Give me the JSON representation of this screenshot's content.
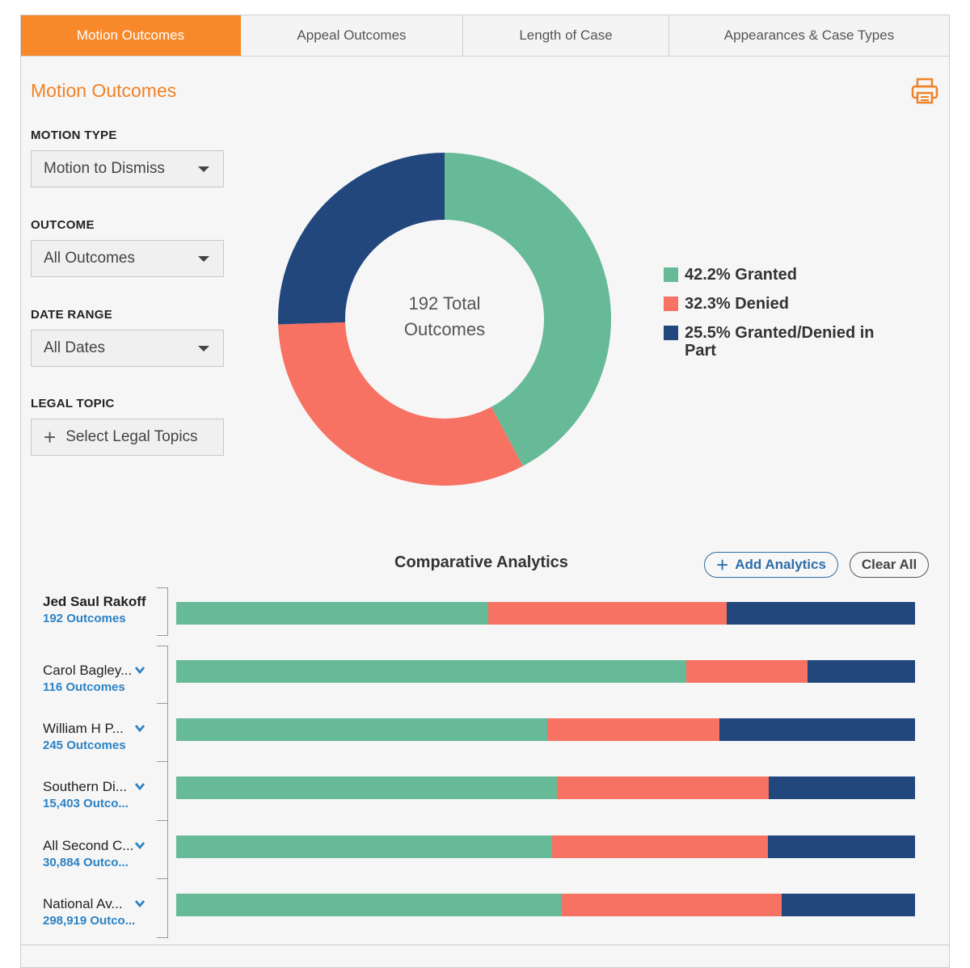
{
  "tabs": [
    {
      "label": "Motion Outcomes",
      "active": true
    },
    {
      "label": "Appeal Outcomes",
      "active": false
    },
    {
      "label": "Length of Case",
      "active": false
    },
    {
      "label": "Appearances & Case Types",
      "active": false
    }
  ],
  "section_title": "Motion Outcomes",
  "filters": {
    "motion_type": {
      "label": "MOTION TYPE",
      "value": "Motion to Dismiss"
    },
    "outcome": {
      "label": "OUTCOME",
      "value": "All Outcomes"
    },
    "date_range": {
      "label": "DATE RANGE",
      "value": "All Dates"
    },
    "legal_topic": {
      "label": "LEGAL TOPIC",
      "placeholder": "Select Legal Topics"
    }
  },
  "colors": {
    "granted": "#66ba97",
    "denied": "#f77262",
    "partial": "#21477d",
    "accent": "#f7892b"
  },
  "chart_data": {
    "type": "pie",
    "center_label_line1": "192 Total",
    "center_label_line2": "Outcomes",
    "slices": [
      {
        "name": "Granted",
        "value": 42.2,
        "label": "42.2% Granted"
      },
      {
        "name": "Denied",
        "value": 32.3,
        "label": "32.3% Denied"
      },
      {
        "name": "Granted/Denied in Part",
        "value": 25.5,
        "label": "25.5% Granted/Denied in Part"
      }
    ]
  },
  "comparative": {
    "title": "Comparative Analytics",
    "add_label": "Add Analytics",
    "clear_label": "Clear All",
    "rows": [
      {
        "name": "Jed Saul Rakoff",
        "count": "192 Outcomes",
        "granted": 42.2,
        "denied": 32.3,
        "partial": 25.5,
        "primary": true
      },
      {
        "name": "Carol Bagley...",
        "count": "116 Outcomes",
        "granted": 69.0,
        "denied": 16.4,
        "partial": 14.6,
        "primary": false
      },
      {
        "name": "William H P...",
        "count": "245 Outcomes",
        "granted": 50.2,
        "denied": 23.3,
        "partial": 26.5,
        "primary": false
      },
      {
        "name": "Southern Di...",
        "count": "15,403 Outco...",
        "granted": 51.5,
        "denied": 28.7,
        "partial": 19.8,
        "primary": false
      },
      {
        "name": "All Second C...",
        "count": "30,884 Outco...",
        "granted": 50.9,
        "denied": 29.2,
        "partial": 19.9,
        "primary": false
      },
      {
        "name": "National Av...",
        "count": "298,919 Outco...",
        "granted": 52.2,
        "denied": 29.8,
        "partial": 18.0,
        "primary": false
      }
    ]
  }
}
